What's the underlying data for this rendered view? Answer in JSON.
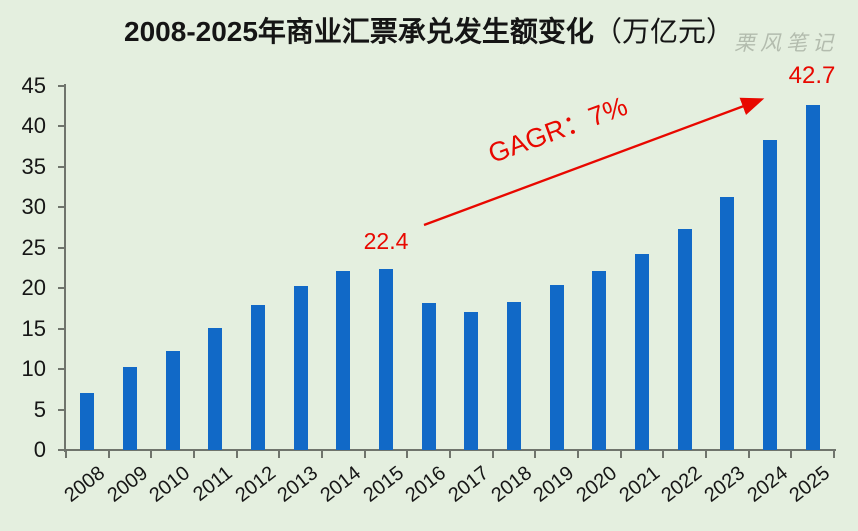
{
  "title": {
    "main": "2008-2025年商业汇票承兑发生额变化",
    "unit": "（万亿元）"
  },
  "watermark": "栗风笔记",
  "annotations": {
    "cagr_label": "GAGR：7%",
    "start_value_label": "22.4",
    "end_value_label": "42.7"
  },
  "colors": {
    "background": "#e4efdf",
    "bar": "#1169c7",
    "annotation_red": "#e80800",
    "axis": "#6f746c",
    "text": "#161616",
    "watermark": "#b3bcae"
  },
  "chart_data": {
    "type": "bar",
    "title": "2008-2025年商业汇票承兑发生额变化（万亿元）",
    "categories": [
      "2008",
      "2009",
      "2010",
      "2011",
      "2012",
      "2013",
      "2014",
      "2015",
      "2016",
      "2017",
      "2018",
      "2019",
      "2020",
      "2021",
      "2022",
      "2023",
      "2024",
      "2025"
    ],
    "values": [
      7.0,
      10.2,
      12.2,
      15.1,
      17.9,
      20.3,
      22.1,
      22.4,
      18.2,
      17.0,
      18.3,
      20.4,
      22.1,
      24.2,
      27.3,
      31.3,
      38.3,
      42.7
    ],
    "xlabel": "",
    "ylabel": "",
    "ylim": [
      0,
      45
    ],
    "yticks": [
      0,
      5,
      10,
      15,
      20,
      25,
      30,
      35,
      40,
      45
    ],
    "grid": false,
    "legend": false,
    "bar_color": "#1169c7",
    "annotations": [
      {
        "type": "text",
        "text": "22.4",
        "target_category": "2015"
      },
      {
        "type": "text",
        "text": "42.7",
        "target_category": "2025"
      },
      {
        "type": "arrow-text",
        "text": "GAGR：7%",
        "from_category": "2015",
        "to_category": "2025"
      }
    ]
  }
}
